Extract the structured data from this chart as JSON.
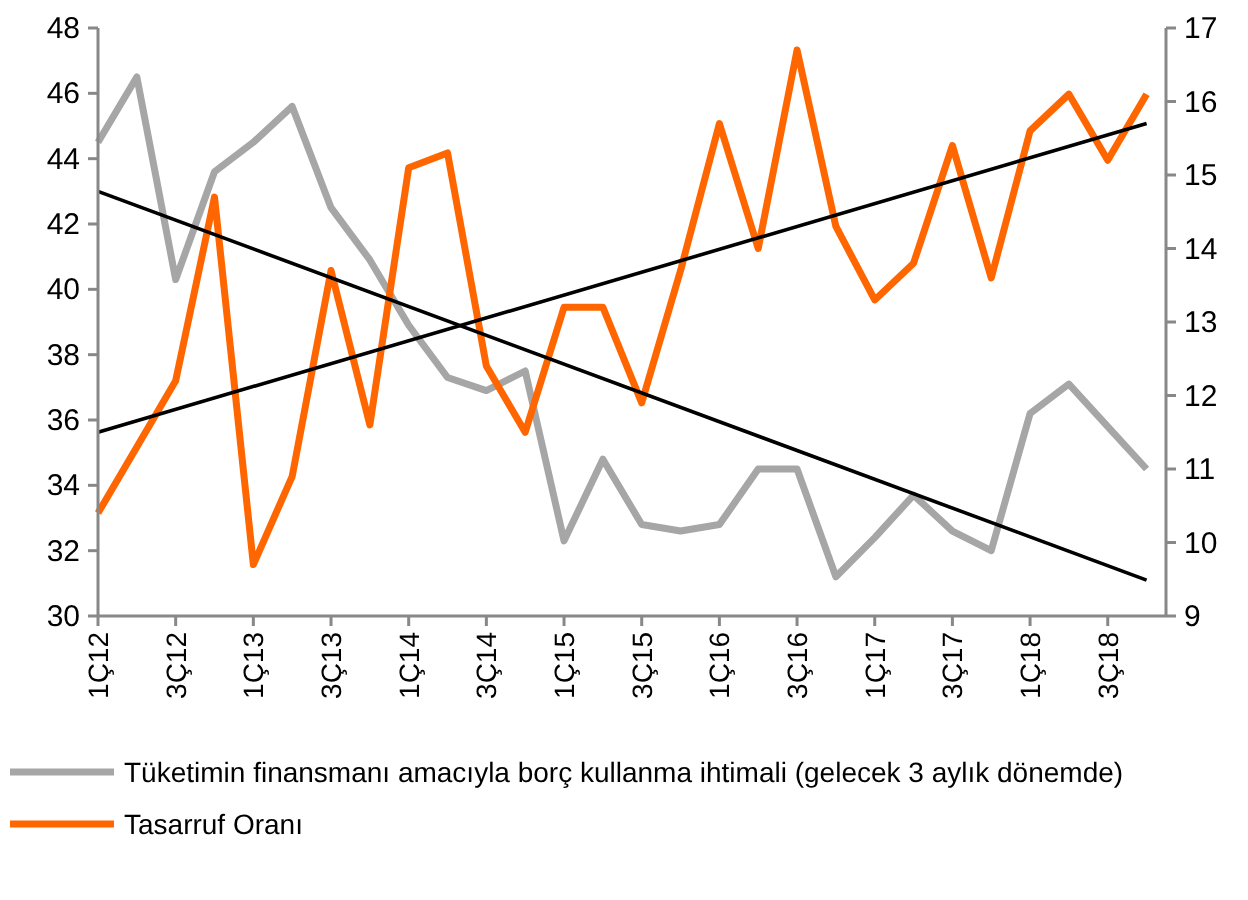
{
  "chart_data": {
    "type": "line",
    "categories": [
      "1Ç12",
      null,
      "3Ç12",
      null,
      "1Ç13",
      null,
      "3Ç13",
      null,
      "1Ç14",
      null,
      "3Ç14",
      null,
      "1Ç15",
      null,
      "3Ç15",
      null,
      "1Ç16",
      null,
      "3Ç16",
      null,
      "1Ç17",
      null,
      "3Ç17",
      null,
      "1Ç18",
      null,
      "3Ç18",
      null
    ],
    "series": [
      {
        "name": "Tüketimin finansmanı amacıyla borç kullanma ihtimali (gelecek 3 aylık dönemde)",
        "color": "#a6a6a6",
        "values": [
          44.5,
          46.5,
          40.3,
          43.6,
          44.5,
          45.6,
          42.5,
          40.9,
          38.9,
          37.3,
          36.9,
          37.5,
          32.3,
          34.8,
          32.8,
          32.6,
          32.8,
          34.5,
          34.5,
          31.2,
          32.4,
          33.7,
          32.6,
          32.0,
          36.2,
          37.1,
          35.8,
          34.5
        ]
      },
      {
        "name": "Tasarruf Oranı",
        "color": "#ff6600",
        "axis": "y2",
        "values": [
          10.4,
          11.3,
          12.2,
          14.7,
          9.7,
          10.9,
          13.7,
          11.6,
          15.1,
          15.3,
          12.4,
          11.5,
          13.2,
          13.2,
          11.9,
          13.7,
          15.7,
          14.0,
          16.7,
          14.3,
          13.3,
          13.8,
          15.4,
          13.6,
          15.6,
          16.1,
          15.2,
          16.1
        ]
      },
      {
        "type": "line",
        "color": "#000000",
        "values": [
          43.0,
          null,
          null,
          null,
          null,
          null,
          null,
          null,
          null,
          null,
          null,
          null,
          null,
          null,
          null,
          null,
          null,
          null,
          null,
          null,
          null,
          null,
          null,
          null,
          null,
          null,
          null,
          31.1
        ]
      },
      {
        "type": "line",
        "color": "#000000",
        "axis": "y2",
        "values": [
          11.5,
          null,
          null,
          null,
          null,
          null,
          null,
          null,
          null,
          null,
          null,
          null,
          null,
          null,
          null,
          null,
          null,
          null,
          null,
          null,
          null,
          null,
          null,
          null,
          null,
          null,
          null,
          15.7
        ]
      }
    ],
    "ylim": [
      30,
      48
    ],
    "yticks": [
      30,
      32,
      34,
      36,
      38,
      40,
      42,
      44,
      46,
      48
    ],
    "y2lim": [
      9,
      17
    ],
    "y2ticks": [
      9,
      10,
      11,
      12,
      13,
      14,
      15,
      16,
      17
    ],
    "grid": false,
    "legend": "bottom",
    "marker": "none",
    "line_style": "solid"
  }
}
